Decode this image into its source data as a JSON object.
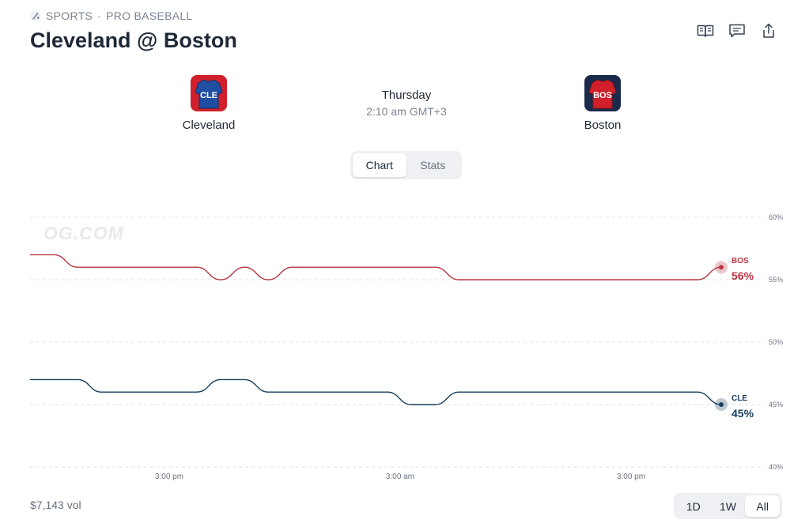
{
  "breadcrumb": {
    "category": "SPORTS",
    "separator": "·",
    "league": "PRO BASEBALL"
  },
  "title": "Cleveland @ Boston",
  "actions": [
    {
      "icon": "book-icon"
    },
    {
      "icon": "comment-icon"
    },
    {
      "icon": "share-icon"
    }
  ],
  "home_team": {
    "name": "Cleveland",
    "abbr": "CLE",
    "color": "#1e4fa3"
  },
  "away_team": {
    "name": "Boston",
    "abbr": "BOS",
    "color": "#d1202b"
  },
  "game": {
    "day": "Thursday",
    "time": "2:10 am GMT+3"
  },
  "view_tabs": [
    {
      "label": "Chart",
      "active": true
    },
    {
      "label": "Stats",
      "active": false
    }
  ],
  "watermark": "OG.COM",
  "volume": "$7,143 vol",
  "ranges": [
    {
      "label": "1D",
      "active": false
    },
    {
      "label": "1W",
      "active": false
    },
    {
      "label": "All",
      "active": true
    }
  ],
  "chart_data": {
    "type": "line",
    "ylim": [
      40,
      60
    ],
    "y_ticks": [
      "60%",
      "55%",
      "50%",
      "45%",
      "40%"
    ],
    "x_tick_labels": [
      "3:00 pm",
      "3:00 am",
      "3:00 pm"
    ],
    "grid": true,
    "series": [
      {
        "name": "BOS",
        "color": "#b83542",
        "end_label": "56%",
        "values": [
          57,
          57,
          56,
          56,
          56,
          56,
          56,
          56,
          55,
          56,
          55,
          56,
          56,
          56,
          56,
          56,
          56,
          56,
          55,
          55,
          55,
          55,
          55,
          55,
          55,
          55,
          55,
          55,
          55,
          56
        ]
      },
      {
        "name": "CLE",
        "color": "#173f5f",
        "end_label": "45%",
        "values": [
          47,
          47,
          47,
          46,
          46,
          46,
          46,
          46,
          47,
          47,
          46,
          46,
          46,
          46,
          46,
          46,
          45,
          45,
          46,
          46,
          46,
          46,
          46,
          46,
          46,
          46,
          46,
          46,
          46,
          45
        ]
      }
    ]
  }
}
